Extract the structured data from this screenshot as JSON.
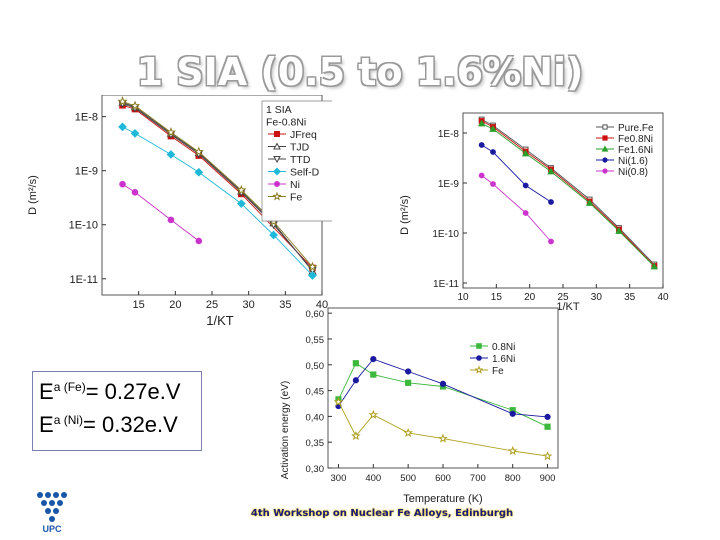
{
  "slide": {
    "title": "1 SIA (0.5 to 1.6%Ni)",
    "footer": "4th Workshop on Nuclear Fe Alloys, Edinburgh",
    "logo_text": "UPC"
  },
  "energy": {
    "line1_base": "E",
    "line1_sup": "a (Fe)",
    "line1_value": "= 0.27e.V",
    "line2_base": "E",
    "line2_sup": "a (Ni)",
    "line2_value": "= 0.32e.V"
  },
  "chart_data": [
    {
      "type": "line",
      "id": "left",
      "title": "",
      "xlabel": "1/KT",
      "ylabel": "D (m²/s)",
      "yscale": "log",
      "xlim": [
        10,
        40
      ],
      "ylim_exp": [
        -11.3,
        -7.6
      ],
      "x_ticks": [
        "15",
        "20",
        "25",
        "30",
        "35",
        "40"
      ],
      "y_ticks": [
        "1E-8",
        "1E-9",
        "1E-10",
        "1E-11"
      ],
      "legend_title": [
        "1 SIA",
        "Fe-0.8Ni"
      ],
      "series": [
        {
          "name": "JFreq",
          "color": "#cc1111",
          "marker": "square-filled",
          "x": [
            12.8,
            14.5,
            19.4,
            23.2,
            29.0,
            38.7
          ],
          "y_exp": [
            -7.79,
            -7.86,
            -8.36,
            -8.72,
            -9.43,
            -10.8
          ]
        },
        {
          "name": "TJD",
          "color": "#444444",
          "marker": "triangle-up-open",
          "x": [
            12.8,
            14.5,
            19.4,
            23.2,
            29.0,
            33.4,
            38.7
          ],
          "y_exp": [
            -7.74,
            -7.82,
            -8.31,
            -8.67,
            -9.38,
            -9.97,
            -10.86
          ]
        },
        {
          "name": "TTD",
          "color": "#444444",
          "marker": "triangle-down-open",
          "x": [
            12.8,
            14.5,
            19.4,
            23.2,
            29.0,
            33.4,
            38.7
          ],
          "y_exp": [
            -7.76,
            -7.84,
            -8.33,
            -8.69,
            -9.4,
            -10.0,
            -10.84
          ]
        },
        {
          "name": "Self-D",
          "color": "#1fb8d8",
          "marker": "diamond-filled",
          "x": [
            12.8,
            14.5,
            19.4,
            23.2,
            29.0,
            33.4,
            38.7
          ],
          "y_exp": [
            -8.19,
            -8.31,
            -8.7,
            -9.03,
            -9.61,
            -10.19,
            -10.94
          ]
        },
        {
          "name": "Ni",
          "color": "#cc33cc",
          "marker": "circle-filled",
          "x": [
            12.8,
            14.5,
            19.4,
            23.2
          ],
          "y_exp": [
            -9.25,
            -9.4,
            -9.91,
            -10.3
          ]
        },
        {
          "name": "Fe",
          "color": "#8a7a20",
          "marker": "star-open",
          "x": [
            12.8,
            14.5,
            19.4,
            23.2,
            29.0,
            33.4,
            38.7
          ],
          "y_exp": [
            -7.72,
            -7.8,
            -8.29,
            -8.65,
            -9.36,
            -9.94,
            -10.78
          ]
        }
      ]
    },
    {
      "type": "line",
      "id": "right",
      "title": "",
      "xlabel": "1/KT",
      "ylabel": "D (m²/s)",
      "yscale": "log",
      "xlim": [
        10,
        40
      ],
      "ylim_exp": [
        -11.1,
        -7.6
      ],
      "x_ticks": [
        "10",
        "15",
        "20",
        "25",
        "30",
        "35",
        "40"
      ],
      "y_ticks": [
        "1E-8",
        "1E-9",
        "1E-10",
        "1E-11"
      ],
      "legend_title": [],
      "series": [
        {
          "name": "Pure.Fe",
          "color": "#555555",
          "marker": "square-open",
          "x": [
            12.8,
            14.5,
            19.4,
            23.2,
            29.0,
            33.4,
            38.7
          ],
          "y_exp": [
            -7.73,
            -7.85,
            -8.33,
            -8.7,
            -9.33,
            -9.9,
            -10.63
          ]
        },
        {
          "name": "Fe0.8Ni",
          "color": "#cc1111",
          "marker": "square-filled",
          "x": [
            12.8,
            14.5,
            19.4,
            23.2,
            29.0,
            33.4,
            38.7
          ],
          "y_exp": [
            -7.76,
            -7.88,
            -8.37,
            -8.73,
            -9.37,
            -9.93,
            -10.66
          ]
        },
        {
          "name": "Fe1.6Ni",
          "color": "#2aa02a",
          "marker": "triangle-up-filled",
          "x": [
            12.8,
            14.5,
            19.4,
            23.2,
            29.0,
            33.4,
            38.7
          ],
          "y_exp": [
            -7.81,
            -7.92,
            -8.41,
            -8.77,
            -9.4,
            -9.96,
            -10.67
          ]
        },
        {
          "name": "Ni(1.6)",
          "color": "#1a1aa0",
          "marker": "circle-filled",
          "x": [
            12.8,
            14.5,
            19.4,
            23.2
          ],
          "y_exp": [
            -8.24,
            -8.38,
            -9.05,
            -9.38
          ]
        },
        {
          "name": "Ni(0.8)",
          "color": "#cc33cc",
          "marker": "circle-filled",
          "x": [
            12.8,
            14.5,
            19.4,
            23.2
          ],
          "y_exp": [
            -8.85,
            -9.02,
            -9.6,
            -10.17
          ]
        }
      ]
    },
    {
      "type": "line",
      "id": "bottom",
      "title": "",
      "xlabel": "Temperature (K)",
      "ylabel": "Activation energy (eV)",
      "xlim": [
        270,
        930
      ],
      "ylim": [
        0.3,
        0.61
      ],
      "x_ticks": [
        "300",
        "400",
        "500",
        "600",
        "700",
        "800",
        "900"
      ],
      "y_ticks": [
        "0,30",
        "0,35",
        "0,40",
        "0,45",
        "0,50",
        "0,55",
        "0,60"
      ],
      "series": [
        {
          "name": "0.8Ni",
          "color": "#3cb93c",
          "marker": "square-filled",
          "x": [
            300,
            350,
            400,
            500,
            600,
            800,
            900
          ],
          "values": [
            0.433,
            0.503,
            0.481,
            0.465,
            0.458,
            0.412,
            0.38
          ]
        },
        {
          "name": "1.6Ni",
          "color": "#1a1aa0",
          "marker": "circle-filled",
          "x": [
            300,
            350,
            400,
            500,
            600,
            800,
            900
          ],
          "values": [
            0.42,
            0.47,
            0.511,
            0.487,
            0.463,
            0.405,
            0.399
          ]
        },
        {
          "name": "Fe",
          "color": "#b0a020",
          "marker": "star-open",
          "x": [
            300,
            350,
            400,
            500,
            600,
            800,
            900
          ],
          "values": [
            0.428,
            0.362,
            0.403,
            0.368,
            0.357,
            0.333,
            0.323
          ]
        }
      ]
    }
  ]
}
